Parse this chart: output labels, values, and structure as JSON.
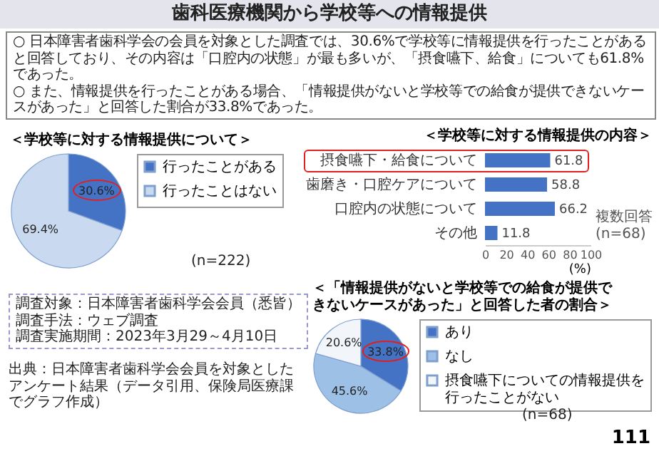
{
  "chart_data": [
    {
      "type": "other",
      "title": "歯科医療機関から学校等への情報提供",
      "annotations": [
        "○ 日本障害者歯科学会の会員を対象とした調査では、30.6%で学校等に情報提供を行ったことがあると回答しており、その内容は「口腔内の状態」が最も多いが、「摂食嚥下、給食」についても61.8%であった。",
        "○ また、情報提供を行ったことがある場合、「情報提供がないと学校等での給食が提供できないケースがあった」と回答した割合が33.8%であった。",
        "調査対象：日本障害者歯科学会会員（悉皆）",
        "調査手法：ウェブ調査",
        "調査実施期間：2023年3月29～4月10日",
        "出典：日本障害者歯科学会会員を対象としたアンケート結果（データ引用、保険局医療課でグラフ作成）",
        "111"
      ]
    },
    {
      "type": "pie",
      "title": "＜学校等に対する情報提供について＞",
      "categories": [
        "行ったことがある",
        "行ったことはない"
      ],
      "values": [
        30.6,
        69.4
      ],
      "colors": [
        "#4472c4",
        "#c9d9ef"
      ],
      "value_labels": [
        "30.6%",
        "69.4%"
      ],
      "legend": "right",
      "annotations": [
        "(n=222)"
      ]
    },
    {
      "type": "bar",
      "title": "＜学校等に対する情報提供の内容＞",
      "orientation": "horizontal",
      "categories": [
        "摂食嚥下・給食について",
        "歯磨き・口腔ケアについて",
        "口腔内の状態について",
        "その他"
      ],
      "values": [
        61.8,
        58.8,
        66.2,
        11.8
      ],
      "color": "#4472c4",
      "data_labels": true,
      "xlim": [
        0,
        100
      ],
      "xticks": [
        0,
        20,
        40,
        60,
        80,
        100
      ],
      "xlabel": "(%)",
      "annotations": [
        "複数回答",
        "(n=68)"
      ]
    },
    {
      "type": "pie",
      "title": "＜「情報提供がないと学校等での給食が提供できないケースがあった」と回答した者の割合＞",
      "categories": [
        "あり",
        "なし",
        "摂食嚥下についての情報提供を行ったことがない"
      ],
      "values": [
        33.8,
        45.6,
        20.6
      ],
      "colors": [
        "#4472c4",
        "#9dc0e6",
        "#f2f6fb"
      ],
      "value_labels": [
        "33.8%",
        "45.6%",
        "20.6%"
      ],
      "legend": "right",
      "annotations": [
        "(n=68)"
      ]
    }
  ]
}
